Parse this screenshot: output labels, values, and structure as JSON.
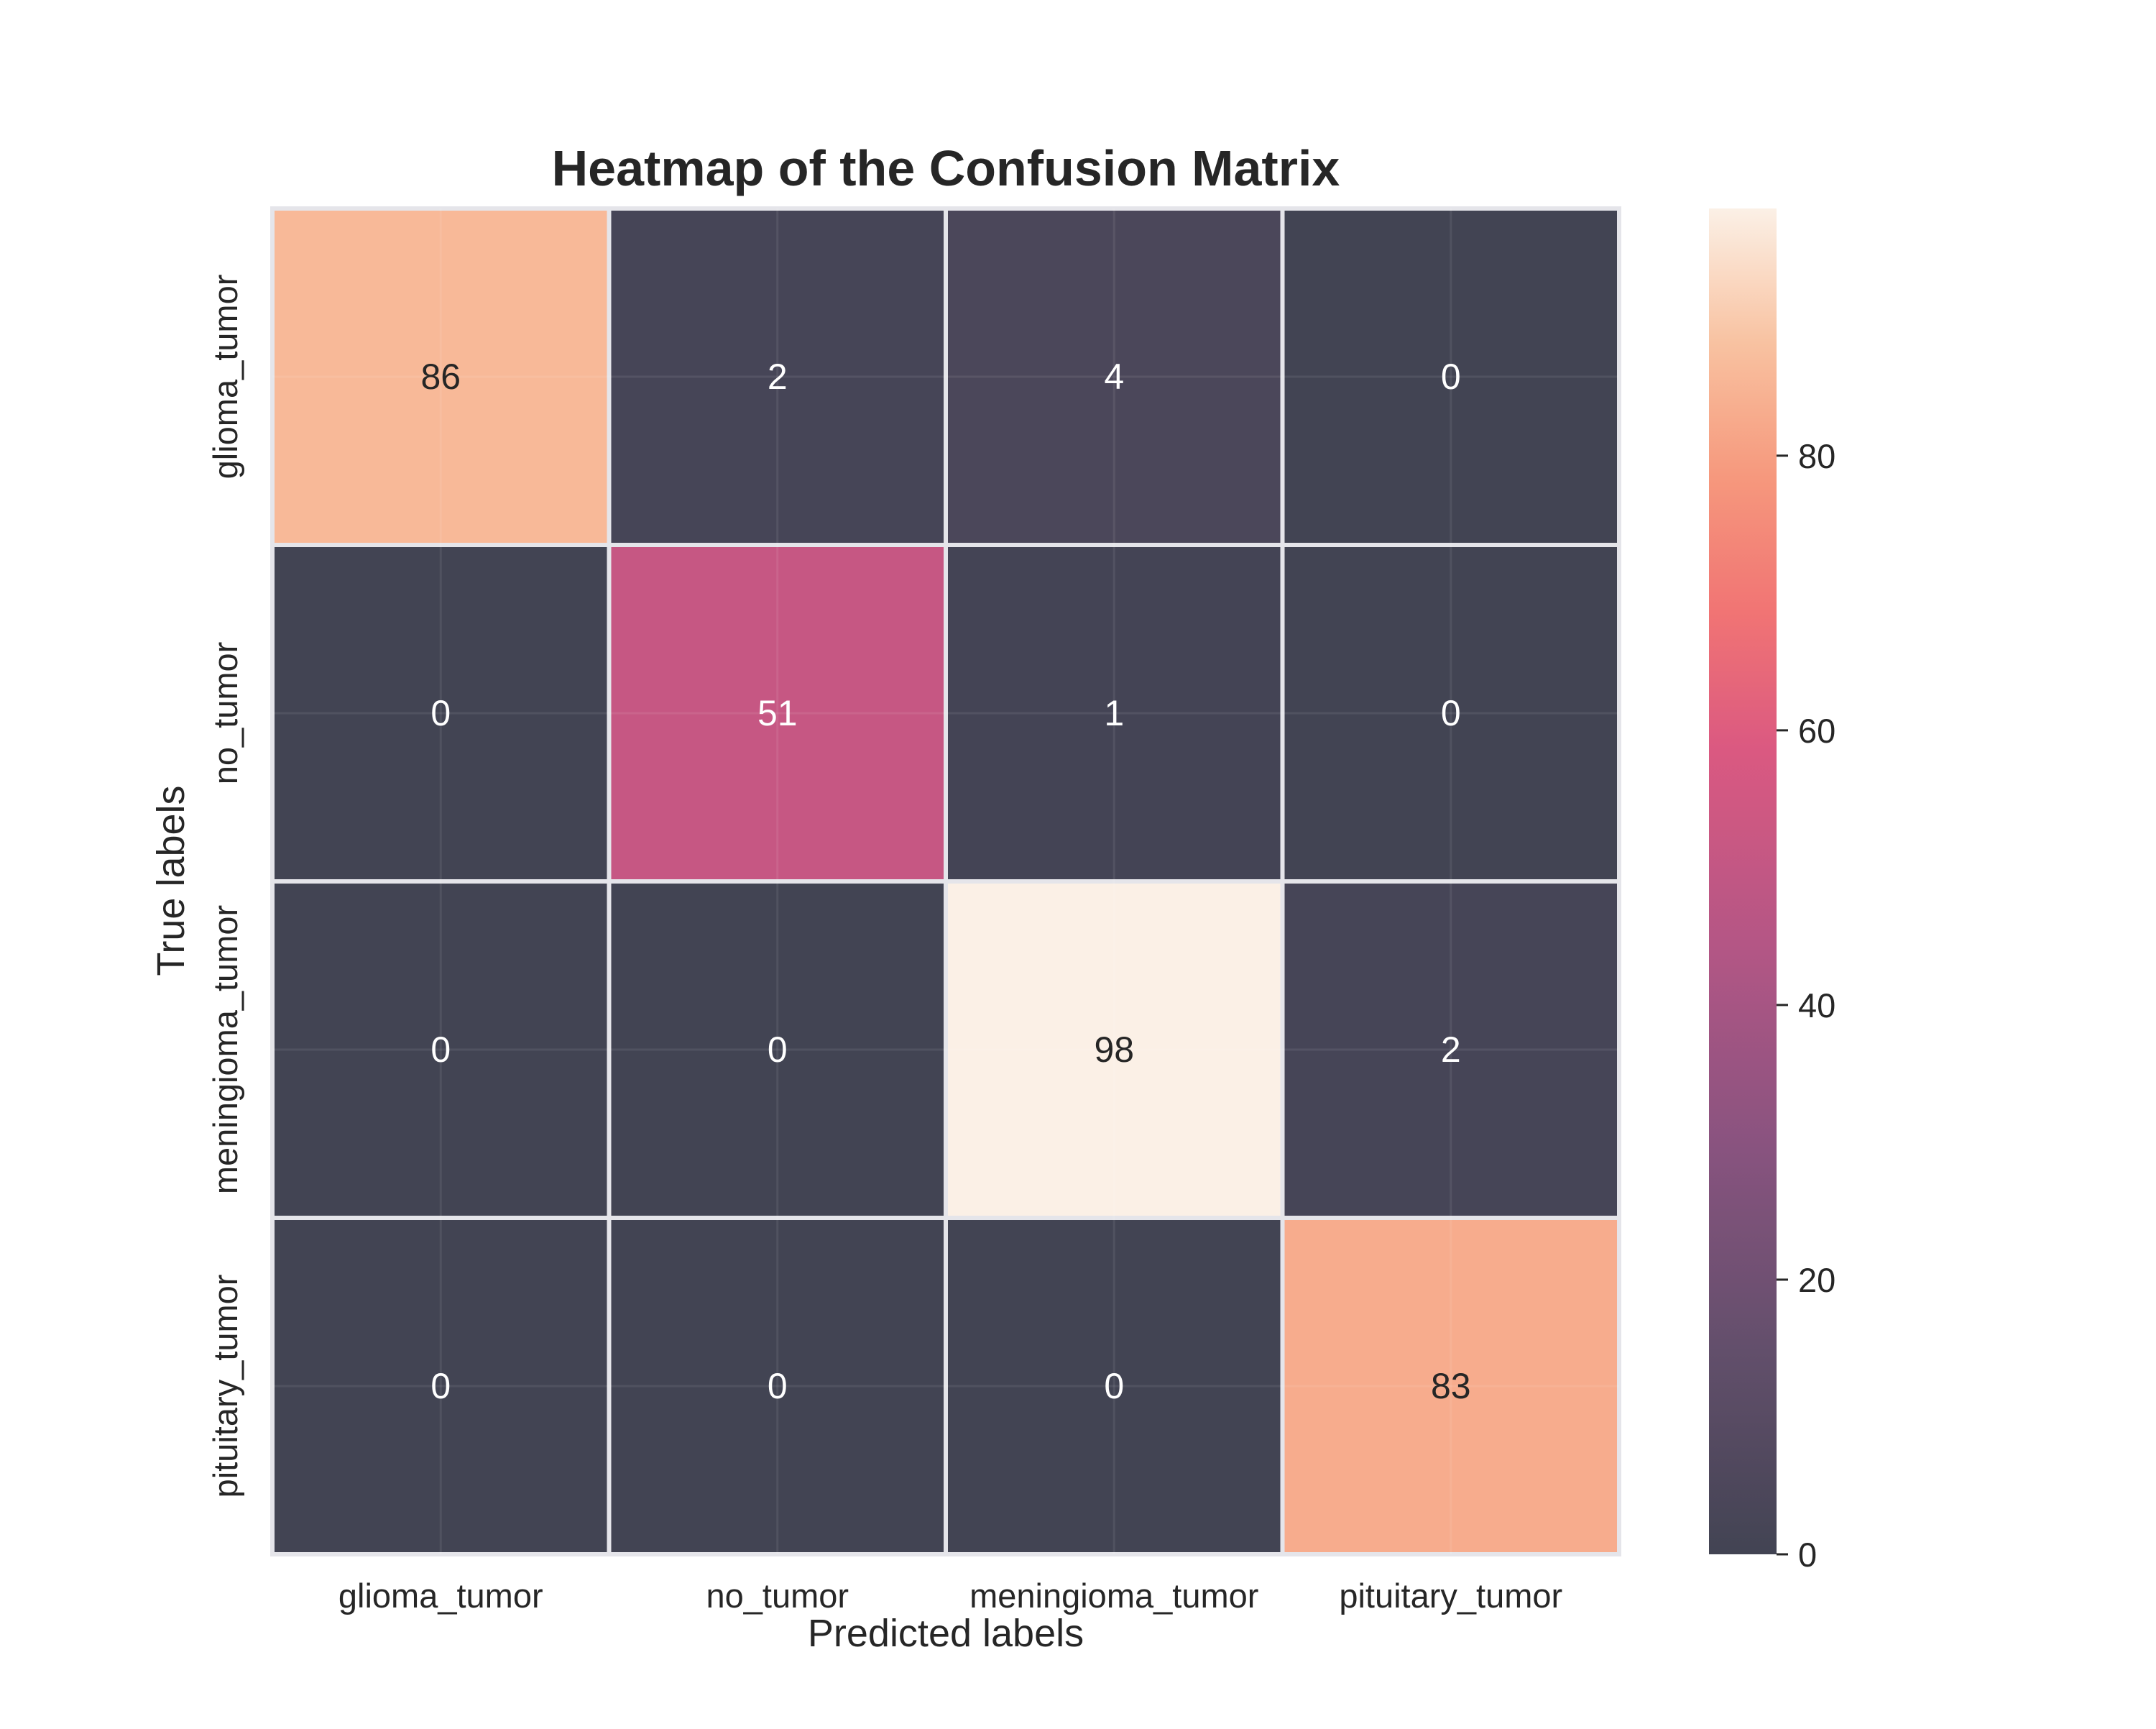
{
  "chart_data": {
    "type": "heatmap",
    "title": "Heatmap of the Confusion Matrix",
    "xlabel": "Predicted labels",
    "ylabel": "True labels",
    "x_categories": [
      "glioma_tumor",
      "no_tumor",
      "meningioma_tumor",
      "pituitary_tumor"
    ],
    "y_categories": [
      "glioma_tumor",
      "no_tumor",
      "meningioma_tumor",
      "pituitary_tumor"
    ],
    "values": [
      [
        86,
        2,
        4,
        0
      ],
      [
        0,
        51,
        1,
        0
      ],
      [
        0,
        0,
        98,
        2
      ],
      [
        0,
        0,
        0,
        83
      ]
    ],
    "colorbar": {
      "range": [
        0,
        98
      ],
      "ticks": [
        "0",
        "20",
        "40",
        "60",
        "80"
      ],
      "colormap": "rocket",
      "alpha": 0.75
    },
    "grid": true,
    "legend": "none"
  }
}
